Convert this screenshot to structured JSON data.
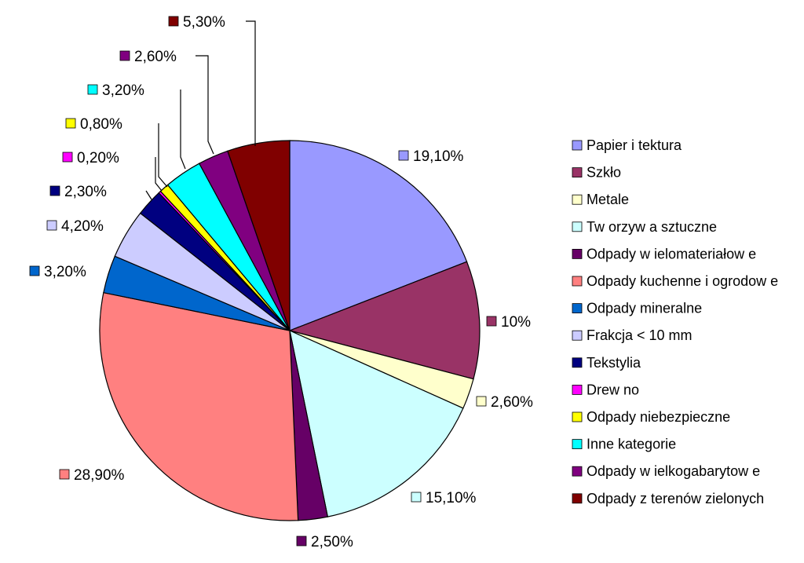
{
  "chart_data": {
    "type": "pie",
    "title": "",
    "legend_position": "right",
    "series": [
      {
        "name": "Papier i tektura",
        "value": 19.1,
        "label": "19,10%",
        "color": "#9999FF"
      },
      {
        "name": "Szkło",
        "value": 10.0,
        "label": "10%",
        "color": "#993366"
      },
      {
        "name": "Metale",
        "value": 2.6,
        "label": "2,60%",
        "color": "#FFFFCC"
      },
      {
        "name": "Tw orzyw a sztuczne",
        "value": 15.1,
        "label": "15,10%",
        "color": "#CCFFFF"
      },
      {
        "name": "Odpady w ielomateriałow e",
        "value": 2.5,
        "label": "2,50%",
        "color": "#660066"
      },
      {
        "name": "Odpady kuchenne i ogrodow e",
        "value": 28.9,
        "label": "28,90%",
        "color": "#FF8080"
      },
      {
        "name": "Odpady mineralne",
        "value": 3.2,
        "label": "3,20%",
        "color": "#0066CC"
      },
      {
        "name": "Frakcja < 10 mm",
        "value": 4.2,
        "label": "4,20%",
        "color": "#CCCCFF"
      },
      {
        "name": "Tekstylia",
        "value": 2.3,
        "label": "2,30%",
        "color": "#000080"
      },
      {
        "name": "Drew no",
        "value": 0.2,
        "label": "0,20%",
        "color": "#FF00FF"
      },
      {
        "name": "Odpady niebezpieczne",
        "value": 0.8,
        "label": "0,80%",
        "color": "#FFFF00"
      },
      {
        "name": "Inne kategorie",
        "value": 3.2,
        "label": "3,20%",
        "color": "#00FFFF"
      },
      {
        "name": "Odpady w ielkogabarytow e",
        "value": 2.6,
        "label": "2,60%",
        "color": "#800080"
      },
      {
        "name": "Odpady z terenów zielonych",
        "value": 5.3,
        "label": "5,30%",
        "color": "#800000"
      }
    ]
  }
}
